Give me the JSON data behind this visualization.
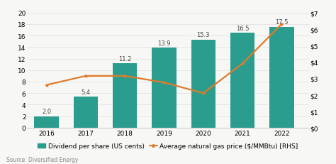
{
  "years": [
    2016,
    2017,
    2018,
    2019,
    2020,
    2021,
    2022
  ],
  "dividends": [
    2.0,
    5.4,
    11.2,
    13.9,
    15.3,
    16.5,
    17.5
  ],
  "gas_prices": [
    2.6,
    3.15,
    3.15,
    2.75,
    2.1,
    3.9,
    6.3
  ],
  "bar_color": "#2a9d8f",
  "line_color": "#e07b2a",
  "bar_label_color": "#444444",
  "left_ylim": [
    0,
    20
  ],
  "left_yticks": [
    0,
    2,
    4,
    6,
    8,
    10,
    12,
    14,
    16,
    18,
    20
  ],
  "right_ylim": [
    0,
    7
  ],
  "right_yticks": [
    0,
    1,
    2,
    3,
    4,
    5,
    6,
    7
  ],
  "right_yticklabels": [
    "$0",
    "$1",
    "$2",
    "$3",
    "$4",
    "$5",
    "$6",
    "$7"
  ],
  "legend_bar_label": "Dividend per share (US cents)",
  "legend_line_label": "Average natural gas price ($/MMBtu) [RHS]",
  "source_text": "Source: Diversified Energy",
  "background_color": "#f7f7f5",
  "bar_label_fontsize": 6.0,
  "legend_fontsize": 6.5,
  "tick_fontsize": 6.5,
  "source_fontsize": 5.5,
  "bar_width": 0.62
}
